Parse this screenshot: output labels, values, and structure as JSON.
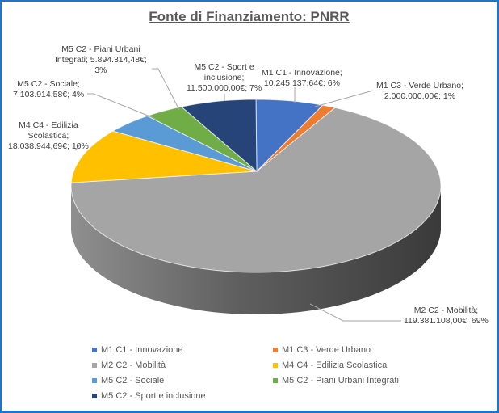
{
  "chart_data": {
    "type": "pie",
    "subtype": "3d-pie",
    "title": "Fonte di Finanziamento: PNRR",
    "currency": "€",
    "categories": [
      "M1 C1 - Innovazione",
      "M1 C3 - Verde Urbano",
      "M2 C2 - Mobilità",
      "M4 C4 - Edilizia Scolastica",
      "M5 C2 - Sociale",
      "M5 C2 - Piani Urbani Integrati",
      "M5 C2 - Sport e inclusione"
    ],
    "values": [
      10245137.64,
      2000000.0,
      119381108.0,
      18038944.69,
      7103914.58,
      5894314.48,
      11500000.0
    ],
    "value_labels": [
      "10.245.137,64€",
      "2.000.000,00€",
      "119.381.108,00€",
      "18.038.944,69€",
      "7.103.914,58€",
      "5.894.314,48€",
      "11.500.000,00€"
    ],
    "percentages": [
      6,
      1,
      69,
      10,
      4,
      3,
      7
    ],
    "colors": [
      "#4472c4",
      "#ed7d31",
      "#a5a5a5",
      "#ffc000",
      "#5b9bd5",
      "#70ad47",
      "#264478"
    ],
    "legend_position": "bottom"
  },
  "title": "Fonte di Finanziamento: PNRR",
  "data_labels": [
    {
      "lines": [
        "M1 C1 - Innovazione;",
        "10.245.137,64€; 6%"
      ]
    },
    {
      "lines": [
        "M1 C3 - Verde Urbano;",
        "2.000.000,00€; 1%"
      ]
    },
    {
      "lines": [
        "M2 C2 - Mobilità;",
        "119.381.108,00€; 69%"
      ]
    },
    {
      "lines": [
        "M4 C4 - Edilizia",
        "Scolastica;",
        "18.038.944,69€; 10%"
      ]
    },
    {
      "lines": [
        "M5 C2 - Sociale;",
        "7.103.914,58€; 4%"
      ]
    },
    {
      "lines": [
        "M5 C2 - Piani Urbani",
        "Integrati; 5.894.314,48€;",
        "3%"
      ]
    },
    {
      "lines": [
        "M5 C2 - Sport e",
        "inclusione;",
        "11.500.000,00€; 7%"
      ]
    }
  ],
  "legend": [
    {
      "label": "M1 C1 - Innovazione",
      "color": "#4472c4"
    },
    {
      "label": "M1 C3 - Verde Urbano",
      "color": "#ed7d31"
    },
    {
      "label": "M2 C2 - Mobilità",
      "color": "#a5a5a5"
    },
    {
      "label": "M4 C4 - Edilizia Scolastica",
      "color": "#ffc000"
    },
    {
      "label": "M5 C2 - Sociale",
      "color": "#5b9bd5"
    },
    {
      "label": "M5 C2 - Piani Urbani Integrati",
      "color": "#70ad47"
    },
    {
      "label": "M5 C2 - Sport e inclusione",
      "color": "#264478"
    }
  ],
  "border_color": "#1f74c8"
}
